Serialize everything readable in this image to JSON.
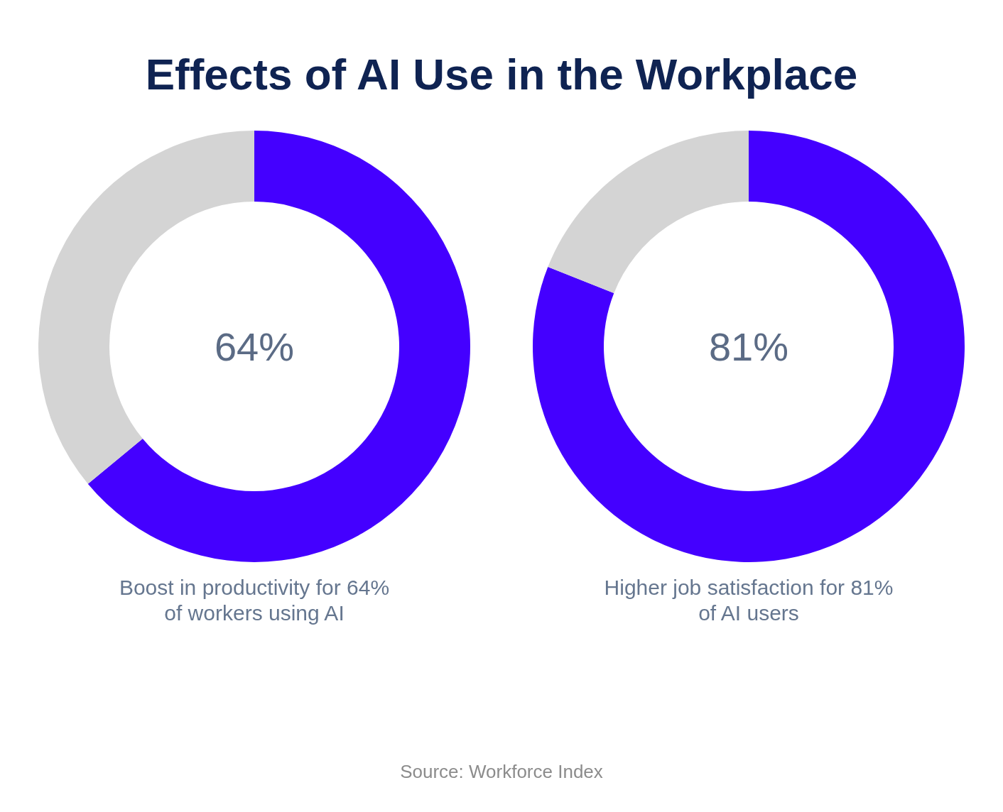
{
  "chart_data": [
    {
      "type": "donut",
      "title": "Effects of AI Use in the Workplace",
      "categories": [
        null,
        null
      ],
      "values": [
        64,
        36
      ],
      "colors": [
        "#4400ff",
        "#d4d4d4"
      ],
      "annotations": [
        "64%",
        "Boost in productivity for 64%\nof workers using AI"
      ]
    },
    {
      "type": "donut",
      "categories": [
        null,
        null
      ],
      "values": [
        81,
        19
      ],
      "colors": [
        "#4400ff",
        "#d4d4d4"
      ],
      "annotations": [
        "81%",
        "Higher job satisfaction for 81%\nof AI users",
        "Source: Workforce Index"
      ]
    }
  ]
}
